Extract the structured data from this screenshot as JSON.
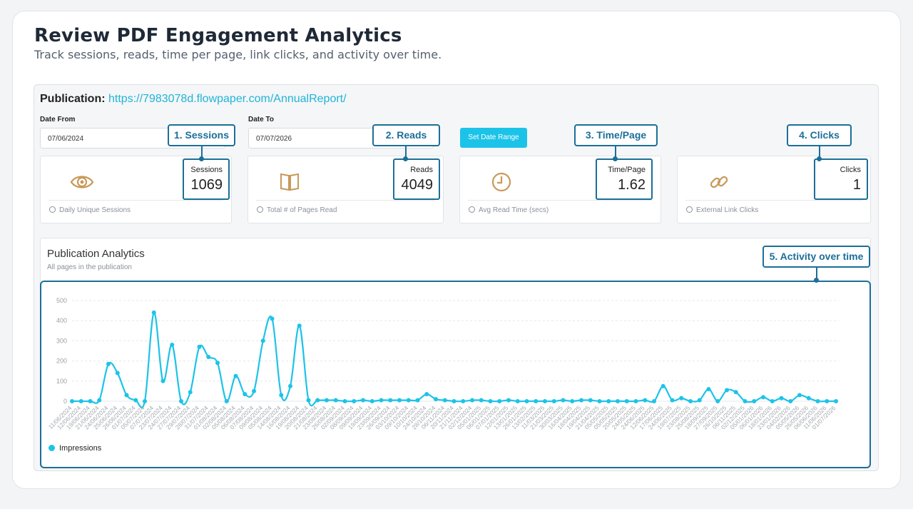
{
  "header": {
    "title": "Review PDF Engagement Analytics",
    "subtitle": "Track sessions, reads, time per page, link clicks, and activity over time."
  },
  "publication": {
    "label": "Publication:",
    "url": "https://7983078d.flowpaper.com/AnnualReport/"
  },
  "filters": {
    "date_from_label": "Date From",
    "date_from_value": "07/06/2024",
    "date_to_label": "Date To",
    "date_to_value": "07/07/2026",
    "set_range_button": "Set Date Range"
  },
  "metrics": [
    {
      "icon": "eye-icon",
      "label": "Sessions",
      "value": "1069",
      "footer": "Daily Unique Sessions",
      "callout": "1. Sessions"
    },
    {
      "icon": "book-icon",
      "label": "Reads",
      "value": "4049",
      "footer": "Total # of Pages Read",
      "callout": "2. Reads"
    },
    {
      "icon": "clock-icon",
      "label": "Time/Page",
      "value": "1.62",
      "footer": "Avg Read Time (secs)",
      "callout": "3. Time/Page"
    },
    {
      "icon": "link-icon",
      "label": "Clicks",
      "value": "1",
      "footer": "External Link Clicks",
      "callout": "4. Clicks"
    }
  ],
  "analytics": {
    "title": "Publication Analytics",
    "subtitle": "All pages in the publication",
    "callout": "5. Activity over time",
    "legend": "Impressions"
  },
  "colors": {
    "accent": "#1cc3e8",
    "callout": "#1b6f98",
    "icon": "#c8995a"
  },
  "chart_data": {
    "type": "line",
    "ylim": [
      0,
      500
    ],
    "yticks": [
      0,
      100,
      200,
      300,
      400,
      500
    ],
    "grid": true,
    "legend_position": "bottom-left",
    "x": [
      "11/06/2024",
      "12/06/2024",
      "19/06/2024",
      "21/06/2024",
      "24/06/2024",
      "25/06/2024",
      "26/06/2024",
      "01/07/2024",
      "05/07/2024",
      "07/07/2024",
      "23/07/2024",
      "24/07/2024",
      "27/07/2024",
      "29/07/2024",
      "28/07/2024",
      "31/07/2024",
      "01/08/2024",
      "02/08/2024",
      "05/08/2024",
      "06/08/2024",
      "07/08/2024",
      "09/08/2024",
      "05/08/2024",
      "14/08/2024",
      "16/08/2024",
      "19/08/2024",
      "20/08/2024",
      "21/08/2024",
      "23/08/2024",
      "26/08/2024",
      "02/09/2024",
      "08/09/2024",
      "09/09/2024",
      "19/09/2024",
      "23/09/2024",
      "26/09/2024",
      "03/10/2024",
      "09/10/2024",
      "10/10/2024",
      "24/10/2024",
      "28/10/2024",
      "06/11/2024",
      "20/11/2024",
      "21/11/2024",
      "02/12/2024",
      "05/01/2025",
      "06/01/2025",
      "07/01/2025",
      "12/01/2025",
      "13/01/2025",
      "26/01/2025",
      "13/02/2025",
      "11/03/2025",
      "21/03/2025",
      "30/03/2025",
      "16/04/2025",
      "18/04/2025",
      "19/04/2025",
      "21/04/2025",
      "05/05/2025",
      "05/05/2025",
      "20/05/2025",
      "24/05/2025",
      "24/06/2025",
      "12/06/2025",
      "17/06/2025",
      "24/06/2025",
      "19/07/2025",
      "23/08/2025",
      "25/08/2025",
      "18/09/2025",
      "27/09/2025",
      "26/10/2025",
      "06/11/2025",
      "02/12/2025",
      "05/01/2026",
      "06/01/2026",
      "18/01/2026",
      "23/01/2026",
      "04/02/2026",
      "05/05/2026",
      "26/05/2026",
      "06/06/2026",
      "11/06/2026",
      "01/07/2026"
    ],
    "series": [
      {
        "name": "Impressions",
        "values": [
          0,
          0,
          0,
          5,
          185,
          140,
          30,
          5,
          0,
          440,
          100,
          280,
          0,
          45,
          270,
          220,
          190,
          0,
          125,
          35,
          50,
          300,
          410,
          30,
          75,
          375,
          5,
          5,
          5,
          5,
          0,
          0,
          5,
          0,
          5,
          5,
          5,
          5,
          5,
          35,
          10,
          5,
          0,
          0,
          5,
          5,
          0,
          0,
          5,
          0,
          0,
          0,
          0,
          0,
          5,
          0,
          5,
          5,
          0,
          0,
          0,
          0,
          0,
          5,
          0,
          75,
          5,
          15,
          0,
          5,
          60,
          0,
          55,
          45,
          0,
          0,
          20,
          0,
          15,
          0,
          30,
          15,
          0,
          0,
          0
        ]
      }
    ]
  }
}
